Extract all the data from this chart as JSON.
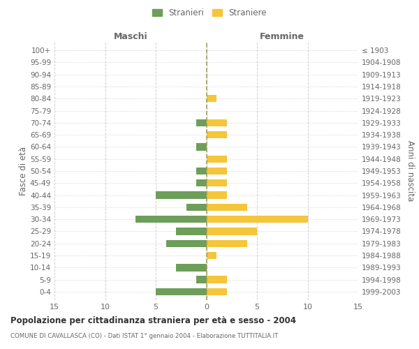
{
  "age_groups": [
    "0-4",
    "5-9",
    "10-14",
    "15-19",
    "20-24",
    "25-29",
    "30-34",
    "35-39",
    "40-44",
    "45-49",
    "50-54",
    "55-59",
    "60-64",
    "65-69",
    "70-74",
    "75-79",
    "80-84",
    "85-89",
    "90-94",
    "95-99",
    "100+"
  ],
  "birth_years": [
    "1999-2003",
    "1994-1998",
    "1989-1993",
    "1984-1988",
    "1979-1983",
    "1974-1978",
    "1969-1973",
    "1964-1968",
    "1959-1963",
    "1954-1958",
    "1949-1953",
    "1944-1948",
    "1939-1943",
    "1934-1938",
    "1929-1933",
    "1924-1928",
    "1919-1923",
    "1914-1918",
    "1909-1913",
    "1904-1908",
    "≤ 1903"
  ],
  "maschi": [
    5,
    1,
    3,
    0,
    4,
    3,
    7,
    2,
    5,
    1,
    1,
    0,
    1,
    0,
    1,
    0,
    0,
    0,
    0,
    0,
    0
  ],
  "straniere": [
    2,
    2,
    0,
    1,
    4,
    5,
    10,
    4,
    2,
    2,
    2,
    2,
    0,
    2,
    2,
    0,
    1,
    0,
    0,
    0,
    0
  ],
  "color_maschi": "#6d9e5a",
  "color_straniere": "#f5c53a",
  "title": "Popolazione per cittadinanza straniera per età e sesso - 2004",
  "subtitle": "COMUNE DI CAVALLASCA (CO) - Dati ISTAT 1° gennaio 2004 - Elaborazione TUTTITALIA.IT",
  "header_left": "Maschi",
  "header_right": "Femmine",
  "ylabel_left": "Fasce di età",
  "ylabel_right": "Anni di nascita",
  "xlim": 15,
  "legend_stranieri": "Stranieri",
  "legend_straniere": "Straniere",
  "bg_color": "#ffffff",
  "grid_color": "#cccccc",
  "label_color": "#666666",
  "center_line_color": "#a0a060"
}
